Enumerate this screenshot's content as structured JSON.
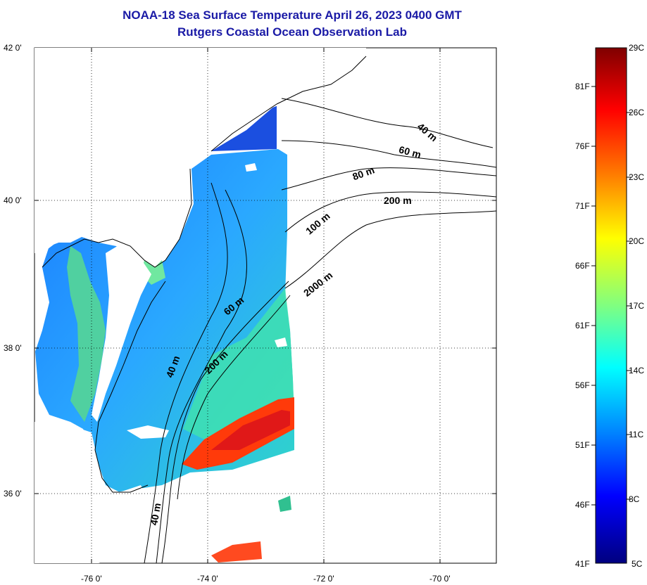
{
  "title": "NOAA-18 Sea Surface Temperature April 26, 2023 0400 GMT",
  "subtitle": "Rutgers Coastal Ocean Observation Lab",
  "map": {
    "lat_labels": [
      "42 0'",
      "40 0'",
      "38 0'",
      "36 0'"
    ],
    "lon_labels": [
      "-76 0'",
      "-74 0'",
      "-72 0'",
      "-70 0'"
    ],
    "grid": "dotted",
    "contour_labels": [
      "40 m",
      "60 m",
      "80 m",
      "200 m",
      "100 m",
      "2000 m",
      "60 m",
      "40 m",
      "200 m",
      "40 m"
    ]
  },
  "colorbar": {
    "fahrenheit": [
      "81F",
      "76F",
      "71F",
      "66F",
      "61F",
      "56F",
      "51F",
      "46F",
      "41F"
    ],
    "celsius": [
      "29C",
      "26C",
      "23C",
      "20C",
      "17C",
      "14C",
      "11C",
      "8C",
      "5C"
    ],
    "colors": [
      "#00007f",
      "#0000ff",
      "#0080ff",
      "#00ffff",
      "#80ff80",
      "#ffff00",
      "#ff8000",
      "#ff0000",
      "#7f0000"
    ]
  }
}
